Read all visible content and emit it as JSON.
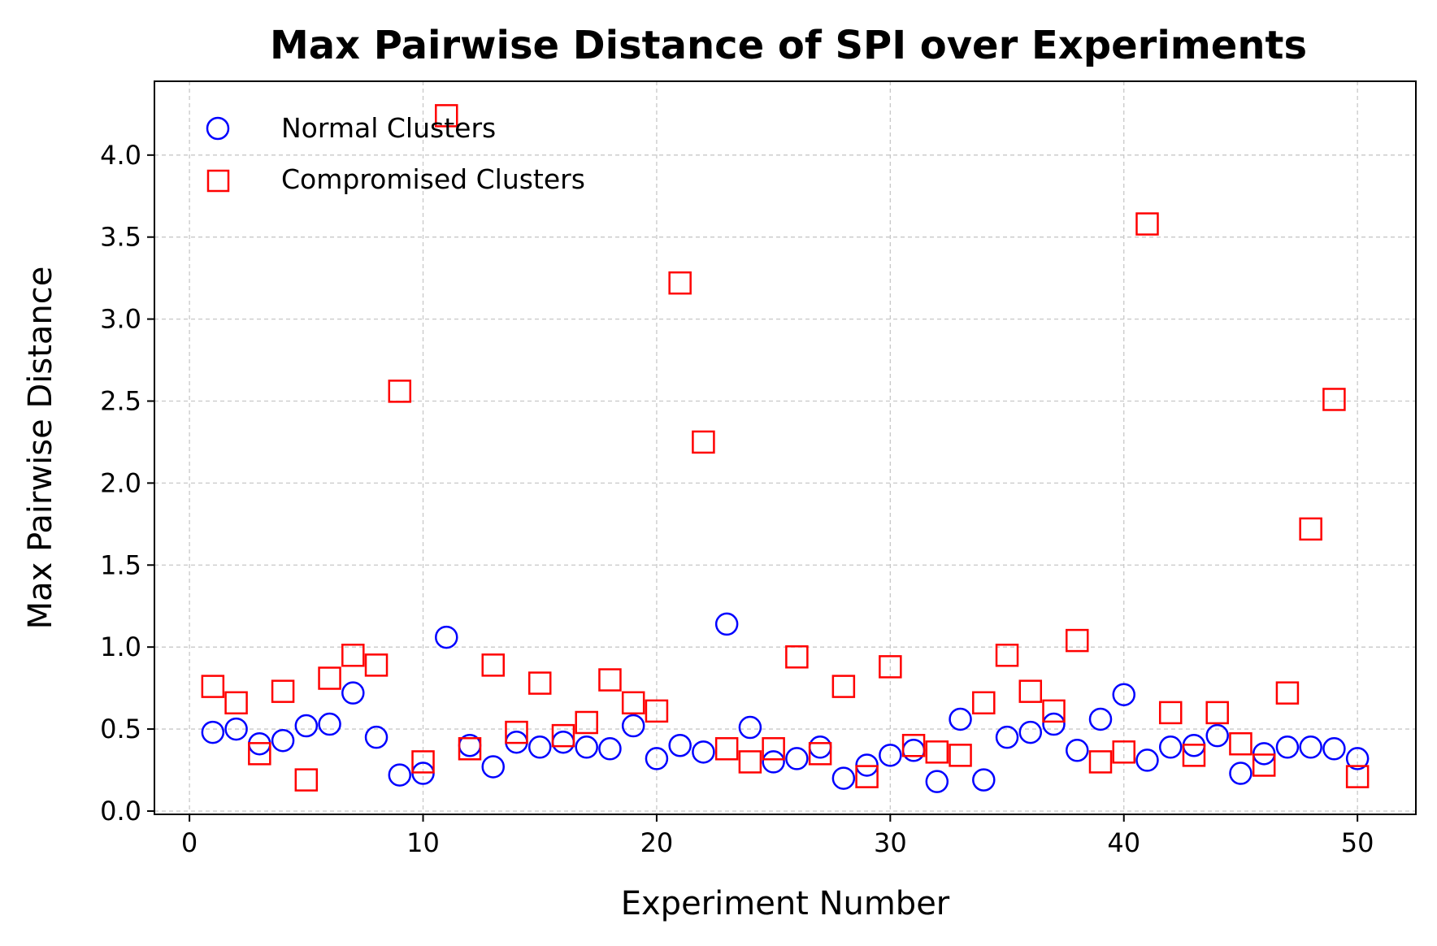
{
  "chart_data": {
    "type": "scatter",
    "title": "Max Pairwise Distance of SPI over Experiments",
    "xlabel": "Experiment Number",
    "ylabel": "Max Pairwise Distance",
    "xlim": [
      -1.5,
      52.5
    ],
    "ylim": [
      -0.02,
      4.45
    ],
    "xticks": [
      0,
      10,
      20,
      30,
      40,
      50
    ],
    "xtick_labels": [
      "0",
      "10",
      "20",
      "30",
      "40",
      "50"
    ],
    "yticks": [
      0.0,
      0.5,
      1.0,
      1.5,
      2.0,
      2.5,
      3.0,
      3.5,
      4.0
    ],
    "ytick_labels": [
      "0.0",
      "0.5",
      "1.0",
      "1.5",
      "2.0",
      "2.5",
      "3.0",
      "3.5",
      "4.0"
    ],
    "grid": true,
    "legend_position": "top-left",
    "x": [
      1,
      2,
      3,
      4,
      5,
      6,
      7,
      8,
      9,
      10,
      11,
      12,
      13,
      14,
      15,
      16,
      17,
      18,
      19,
      20,
      21,
      22,
      23,
      24,
      25,
      26,
      27,
      28,
      29,
      30,
      31,
      32,
      33,
      34,
      35,
      36,
      37,
      38,
      39,
      40,
      41,
      42,
      43,
      44,
      45,
      46,
      47,
      48,
      49,
      50
    ],
    "series": [
      {
        "name": "Normal Clusters",
        "marker": "circle",
        "color": "#0000ff",
        "values": [
          0.48,
          0.5,
          0.41,
          0.43,
          0.52,
          0.53,
          0.72,
          0.45,
          0.22,
          0.23,
          1.06,
          0.4,
          0.27,
          0.42,
          0.39,
          0.42,
          0.39,
          0.38,
          0.52,
          0.32,
          0.4,
          0.36,
          1.14,
          0.51,
          0.3,
          0.32,
          0.39,
          0.2,
          0.28,
          0.34,
          0.37,
          0.18,
          0.56,
          0.19,
          0.45,
          0.48,
          0.53,
          0.37,
          0.56,
          0.71,
          0.31,
          0.39,
          0.4,
          0.46,
          0.23,
          0.35,
          0.39,
          0.39,
          0.38,
          0.32
        ]
      },
      {
        "name": "Compromised Clusters",
        "marker": "square",
        "color": "#ff0000",
        "values": [
          0.76,
          0.66,
          0.35,
          0.73,
          0.19,
          0.81,
          0.95,
          0.89,
          2.56,
          0.3,
          4.24,
          0.38,
          0.89,
          0.48,
          0.78,
          0.46,
          0.54,
          0.8,
          0.66,
          0.61,
          3.22,
          2.25,
          0.38,
          0.3,
          0.38,
          0.94,
          0.35,
          0.76,
          0.21,
          0.88,
          0.4,
          0.36,
          0.34,
          0.66,
          0.95,
          0.73,
          0.61,
          1.04,
          0.3,
          0.36,
          3.58,
          0.6,
          0.34,
          0.6,
          0.41,
          0.28,
          0.72,
          1.72,
          2.51,
          0.21
        ]
      }
    ]
  }
}
